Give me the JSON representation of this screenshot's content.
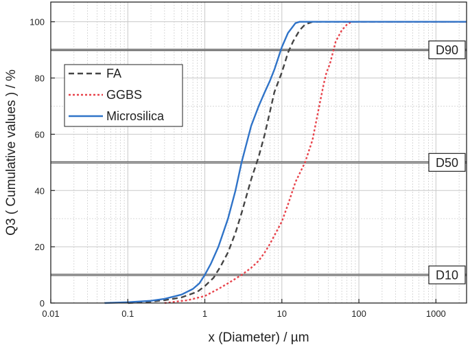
{
  "chart_data": {
    "type": "line",
    "xscale": "log",
    "xlim": [
      0.01,
      2500
    ],
    "ylim": [
      0,
      107
    ],
    "grid": true,
    "xlabel": "x (Diameter) / µm",
    "ylabel": "Q3 ( Cumulative values ) / %",
    "xticks": [
      0.01,
      0.1,
      1,
      10,
      100,
      1000
    ],
    "xtick_labels": [
      "0.01",
      "0.1",
      "1",
      "10",
      "100",
      "1000"
    ],
    "yticks": [
      0,
      20,
      40,
      60,
      80,
      100
    ],
    "ytick_labels": [
      "0",
      "20",
      "40",
      "60",
      "80",
      "100"
    ],
    "legend_position": "top-left",
    "series": [
      {
        "name": "FA",
        "color": "#444444",
        "dash": "dashed",
        "x": [
          0.1,
          0.2,
          0.3,
          0.5,
          0.8,
          1,
          1.3,
          1.6,
          2,
          2.5,
          3,
          4,
          5,
          6,
          7,
          8,
          10,
          12,
          14,
          17,
          20,
          25,
          30,
          2500
        ],
        "y": [
          0,
          0.5,
          1,
          2,
          4,
          6,
          9,
          13,
          18,
          25,
          32,
          44,
          52,
          60,
          68,
          75,
          82,
          89,
          93,
          97,
          99,
          100,
          100,
          100
        ]
      },
      {
        "name": "GGBS",
        "color": "#e8434b",
        "dash": "dotted",
        "x": [
          0.3,
          0.6,
          1,
          1.5,
          2,
          3,
          4,
          5,
          6,
          7,
          8,
          10,
          12,
          15,
          20,
          25,
          30,
          35,
          38,
          42,
          50,
          60,
          70,
          80,
          90,
          2500
        ],
        "y": [
          0,
          1,
          2.5,
          5,
          7,
          10,
          12.5,
          15,
          18,
          21,
          24,
          29,
          35,
          43,
          50,
          58,
          69,
          78,
          82,
          85,
          93,
          97,
          99,
          100,
          100,
          100
        ]
      },
      {
        "name": "Microsilica",
        "color": "#2f73c8",
        "dash": "solid",
        "x": [
          0.05,
          0.1,
          0.2,
          0.3,
          0.5,
          0.7,
          0.85,
          1,
          1.2,
          1.5,
          2,
          2.5,
          3,
          4,
          5,
          6,
          7,
          8,
          10,
          12,
          15,
          17,
          20,
          2500
        ],
        "y": [
          0,
          0.3,
          0.8,
          1.5,
          3,
          5,
          7,
          10,
          14,
          20,
          30,
          40,
          50,
          63,
          70,
          75,
          79,
          83,
          91,
          96,
          99.5,
          100,
          100,
          100
        ]
      }
    ],
    "reference_lines": [
      {
        "label": "D10",
        "y": 10
      },
      {
        "label": "D50",
        "y": 50
      },
      {
        "label": "D90",
        "y": 90
      }
    ]
  }
}
